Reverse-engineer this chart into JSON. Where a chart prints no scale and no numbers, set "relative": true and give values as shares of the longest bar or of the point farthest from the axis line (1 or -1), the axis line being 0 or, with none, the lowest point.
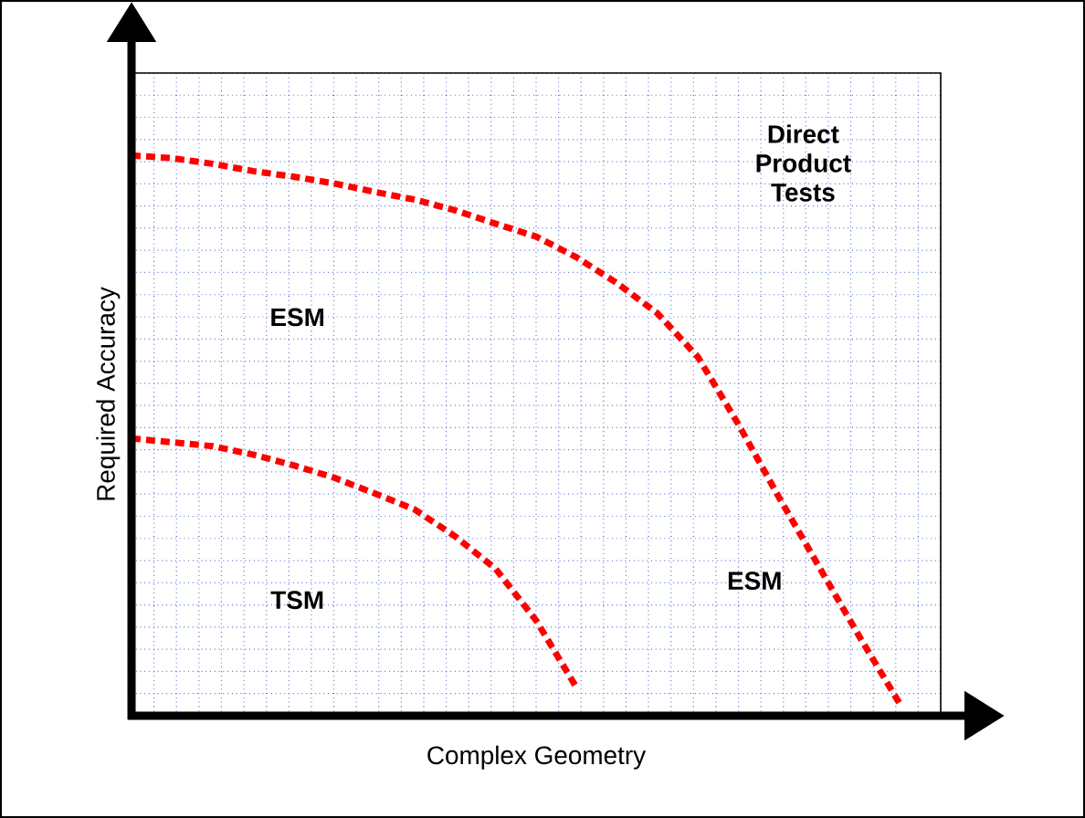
{
  "chart_data": {
    "type": "line",
    "relative": true,
    "xlabel": "Complex Geometry",
    "ylabel": "Required Accuracy",
    "grid": true,
    "line_style": "dashed",
    "marker": "none",
    "annotations": [
      "ESM",
      "Direct Product Tests",
      "TSM",
      "ESM"
    ],
    "categories": [
      null,
      null,
      null,
      null,
      null,
      null,
      null,
      null,
      null,
      null,
      null,
      null,
      null,
      null,
      null,
      null,
      null,
      null,
      null,
      null,
      null
    ],
    "series": [
      {
        "color": "#ff0000",
        "values": [
          1.0,
          0.995,
          0.985,
          0.972,
          0.962,
          0.95,
          0.935,
          0.921,
          0.902,
          0.878,
          0.855,
          0.818,
          0.772,
          0.718,
          0.64,
          0.52,
          0.39,
          0.265,
          0.14,
          0.02,
          null
        ]
      },
      {
        "color": "#ff0000",
        "values": [
          0.495,
          0.488,
          0.481,
          0.466,
          0.447,
          0.425,
          0.397,
          0.368,
          0.32,
          0.262,
          0.17,
          0.05,
          null,
          null,
          null,
          null,
          null,
          null,
          null,
          null,
          null
        ]
      }
    ]
  }
}
